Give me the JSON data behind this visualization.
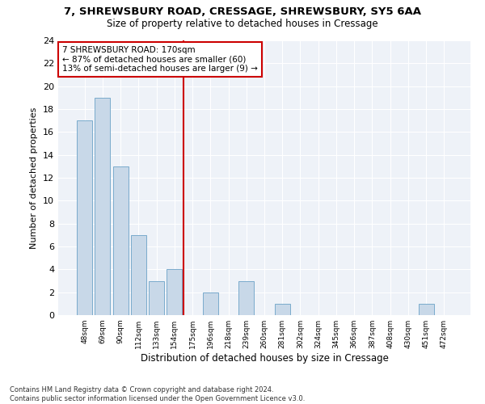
{
  "title_line1": "7, SHREWSBURY ROAD, CRESSAGE, SHREWSBURY, SY5 6AA",
  "title_line2": "Size of property relative to detached houses in Cressage",
  "xlabel": "Distribution of detached houses by size in Cressage",
  "ylabel": "Number of detached properties",
  "bar_labels": [
    "48sqm",
    "69sqm",
    "90sqm",
    "112sqm",
    "133sqm",
    "154sqm",
    "175sqm",
    "196sqm",
    "218sqm",
    "239sqm",
    "260sqm",
    "281sqm",
    "302sqm",
    "324sqm",
    "345sqm",
    "366sqm",
    "387sqm",
    "408sqm",
    "430sqm",
    "451sqm",
    "472sqm"
  ],
  "bar_values": [
    17,
    19,
    13,
    7,
    3,
    4,
    0,
    2,
    0,
    3,
    0,
    1,
    0,
    0,
    0,
    0,
    0,
    0,
    0,
    1,
    0
  ],
  "bar_color": "#c8d8e8",
  "bar_edgecolor": "#7aaBcc",
  "vline_color": "#cc0000",
  "annotation_text": "7 SHREWSBURY ROAD: 170sqm\n← 87% of detached houses are smaller (60)\n13% of semi-detached houses are larger (9) →",
  "annotation_box_color": "#ffffff",
  "annotation_box_edgecolor": "#cc0000",
  "ylim": [
    0,
    24
  ],
  "yticks": [
    0,
    2,
    4,
    6,
    8,
    10,
    12,
    14,
    16,
    18,
    20,
    22,
    24
  ],
  "footer_line1": "Contains HM Land Registry data © Crown copyright and database right 2024.",
  "footer_line2": "Contains public sector information licensed under the Open Government Licence v3.0.",
  "bg_color": "#ffffff",
  "plot_bg_color": "#eef2f8",
  "grid_color": "#ffffff",
  "vline_x": 5.5
}
